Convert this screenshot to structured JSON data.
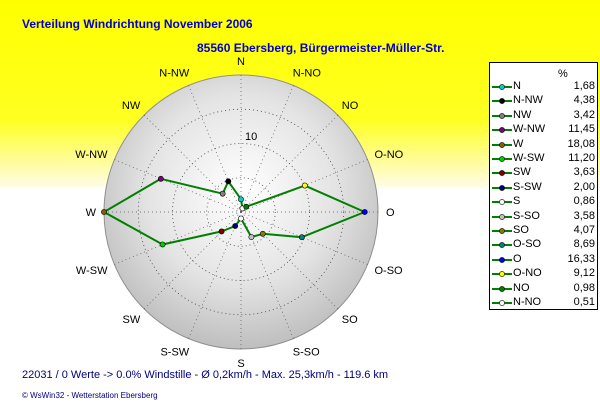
{
  "header": {
    "title": "Verteilung Windrichtung    November 2006",
    "subtitle": "85560 Ebersberg, Bürgermeister-Müller-Str."
  },
  "footer": {
    "stats": "22031 / 0 Werte  -> 0.0% Windstille   -   Ø 0,2km/h   -  Max. 25,3km/h  -   119.6 km",
    "credit": "© WsWin32  -  Wetterstation Ebersberg"
  },
  "chart_data": {
    "type": "radar",
    "unit_label": "%",
    "directions": [
      "N",
      "N-NO",
      "NO",
      "O-NO",
      "O",
      "O-SO",
      "SO",
      "S-SO",
      "S",
      "S-SW",
      "SW",
      "W-SW",
      "W",
      "W-NW",
      "NW",
      "N-NW"
    ],
    "series": [
      {
        "values": [
          1.68,
          0.51,
          0.98,
          9.12,
          16.33,
          8.69,
          4.07,
          3.58,
          0.86,
          2.0,
          3.63,
          11.2,
          18.08,
          11.45,
          3.42,
          4.38
        ]
      }
    ],
    "rmax": 18.08,
    "ring_tick": "10",
    "grid": true,
    "legend_position": "right",
    "legend": [
      {
        "name": "N",
        "value": "1,68",
        "color": "#00cccc"
      },
      {
        "name": "N-NW",
        "value": "4,38",
        "color": "#000000"
      },
      {
        "name": "NW",
        "value": "3,42",
        "color": "#808080"
      },
      {
        "name": "W-NW",
        "value": "11,45",
        "color": "#800080"
      },
      {
        "name": "W",
        "value": "18,08",
        "color": "#806000"
      },
      {
        "name": "W-SW",
        "value": "11,20",
        "color": "#00cc00"
      },
      {
        "name": "SW",
        "value": "3,63",
        "color": "#800000"
      },
      {
        "name": "S-SW",
        "value": "2,00",
        "color": "#000080"
      },
      {
        "name": "S",
        "value": "0,86",
        "color": "#ffffff"
      },
      {
        "name": "S-SO",
        "value": "3,58",
        "color": "#c0c0c0"
      },
      {
        "name": "SO",
        "value": "4,07",
        "color": "#808000"
      },
      {
        "name": "O-SO",
        "value": "8,69",
        "color": "#008080"
      },
      {
        "name": "O",
        "value": "16,33",
        "color": "#0000ff"
      },
      {
        "name": "O-NO",
        "value": "9,12",
        "color": "#ffff00"
      },
      {
        "name": "NO",
        "value": "0,98",
        "color": "#008000"
      },
      {
        "name": "N-NO",
        "value": "0,51",
        "color": "#ffffff"
      }
    ],
    "line_color": "#008000"
  }
}
